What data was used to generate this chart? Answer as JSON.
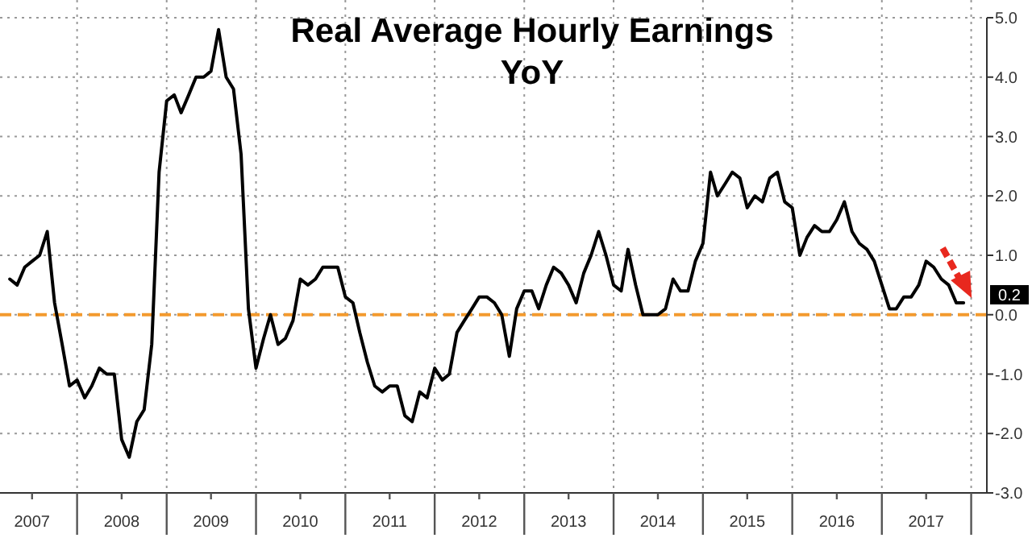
{
  "chart_data": {
    "type": "line",
    "title": "Real Average Hourly Earnings",
    "subtitle": "YoY",
    "x": [
      "2007-04",
      "2007-05",
      "2007-06",
      "2007-07",
      "2007-08",
      "2007-09",
      "2007-10",
      "2007-11",
      "2007-12",
      "2008-01",
      "2008-02",
      "2008-03",
      "2008-04",
      "2008-05",
      "2008-06",
      "2008-07",
      "2008-08",
      "2008-09",
      "2008-10",
      "2008-11",
      "2008-12",
      "2009-01",
      "2009-02",
      "2009-03",
      "2009-04",
      "2009-05",
      "2009-06",
      "2009-07",
      "2009-08",
      "2009-09",
      "2009-10",
      "2009-11",
      "2009-12",
      "2010-01",
      "2010-02",
      "2010-03",
      "2010-04",
      "2010-05",
      "2010-06",
      "2010-07",
      "2010-08",
      "2010-09",
      "2010-10",
      "2010-11",
      "2010-12",
      "2011-01",
      "2011-02",
      "2011-03",
      "2011-04",
      "2011-05",
      "2011-06",
      "2011-07",
      "2011-08",
      "2011-09",
      "2011-10",
      "2011-11",
      "2011-12",
      "2012-01",
      "2012-02",
      "2012-03",
      "2012-04",
      "2012-05",
      "2012-06",
      "2012-07",
      "2012-08",
      "2012-09",
      "2012-10",
      "2012-11",
      "2012-12",
      "2013-01",
      "2013-02",
      "2013-03",
      "2013-04",
      "2013-05",
      "2013-06",
      "2013-07",
      "2013-08",
      "2013-09",
      "2013-10",
      "2013-11",
      "2013-12",
      "2014-01",
      "2014-02",
      "2014-03",
      "2014-04",
      "2014-05",
      "2014-06",
      "2014-07",
      "2014-08",
      "2014-09",
      "2014-10",
      "2014-11",
      "2014-12",
      "2015-01",
      "2015-02",
      "2015-03",
      "2015-04",
      "2015-05",
      "2015-06",
      "2015-07",
      "2015-08",
      "2015-09",
      "2015-10",
      "2015-11",
      "2015-12",
      "2016-01",
      "2016-02",
      "2016-03",
      "2016-04",
      "2016-05",
      "2016-06",
      "2016-07",
      "2016-08",
      "2016-09",
      "2016-10",
      "2016-11",
      "2016-12",
      "2017-01",
      "2017-02",
      "2017-03",
      "2017-04",
      "2017-05",
      "2017-06",
      "2017-07",
      "2017-08",
      "2017-09",
      "2017-10",
      "2017-11",
      "2017-12"
    ],
    "series": [
      {
        "color": "#000000",
        "values": [
          0.6,
          0.5,
          0.8,
          0.9,
          1.0,
          1.4,
          0.2,
          -0.5,
          -1.2,
          -1.1,
          -1.4,
          -1.2,
          -0.9,
          -1.0,
          -1.0,
          -2.1,
          -2.4,
          -1.8,
          -1.6,
          -0.5,
          2.4,
          3.6,
          3.7,
          3.4,
          3.7,
          4.0,
          4.0,
          4.1,
          4.8,
          4.0,
          3.8,
          2.7,
          0.1,
          -0.9,
          -0.4,
          0.0,
          -0.5,
          -0.4,
          -0.1,
          0.6,
          0.5,
          0.6,
          0.8,
          0.8,
          0.8,
          0.3,
          0.2,
          -0.3,
          -0.8,
          -1.2,
          -1.3,
          -1.2,
          -1.2,
          -1.7,
          -1.8,
          -1.3,
          -1.4,
          -0.9,
          -1.1,
          -1.0,
          -0.3,
          -0.1,
          0.1,
          0.3,
          0.3,
          0.2,
          0.0,
          -0.7,
          0.1,
          0.4,
          0.4,
          0.1,
          0.5,
          0.8,
          0.7,
          0.5,
          0.2,
          0.7,
          1.0,
          1.4,
          1.0,
          0.5,
          0.4,
          1.1,
          0.5,
          0.0,
          0.0,
          0.0,
          0.1,
          0.6,
          0.4,
          0.4,
          0.9,
          1.2,
          2.4,
          2.0,
          2.2,
          2.4,
          2.3,
          1.8,
          2.0,
          1.9,
          2.3,
          2.4,
          1.9,
          1.8,
          1.0,
          1.3,
          1.5,
          1.4,
          1.4,
          1.6,
          1.9,
          1.4,
          1.2,
          1.1,
          0.9,
          0.5,
          0.1,
          0.1,
          0.3,
          0.3,
          0.5,
          0.9,
          0.8,
          0.6,
          0.5,
          0.2,
          0.2
        ]
      }
    ],
    "xlim": [
      "2007-02-20",
      "2018-03-06"
    ],
    "xticks": [
      {
        "value": "2007-07-01",
        "label": "2007"
      },
      {
        "value": "2008-01-01",
        "label": null
      },
      {
        "value": "2008-07-01",
        "label": "2008"
      },
      {
        "value": "2009-01-01",
        "label": null
      },
      {
        "value": "2009-07-01",
        "label": "2009"
      },
      {
        "value": "2010-01-01",
        "label": null
      },
      {
        "value": "2010-07-01",
        "label": "2010"
      },
      {
        "value": "2011-01-01",
        "label": null
      },
      {
        "value": "2011-07-01",
        "label": "2011"
      },
      {
        "value": "2012-01-01",
        "label": null
      },
      {
        "value": "2012-07-01",
        "label": "2012"
      },
      {
        "value": "2013-01-01",
        "label": null
      },
      {
        "value": "2013-07-01",
        "label": "2013"
      },
      {
        "value": "2014-01-01",
        "label": null
      },
      {
        "value": "2014-07-01",
        "label": "2014"
      },
      {
        "value": "2015-01-01",
        "label": null
      },
      {
        "value": "2015-07-01",
        "label": "2015"
      },
      {
        "value": "2016-01-01",
        "label": null
      },
      {
        "value": "2016-07-01",
        "label": "2016"
      },
      {
        "value": "2017-01-01",
        "label": null
      },
      {
        "value": "2017-07-01",
        "label": "2017"
      },
      {
        "value": "2018-01-01",
        "label": null
      }
    ],
    "ylim": [
      -3,
      5
    ],
    "yticks": [
      {
        "value": -3,
        "label": "-3.0"
      },
      {
        "value": -2,
        "label": "-2.0"
      },
      {
        "value": -1,
        "label": "-1.0"
      },
      {
        "value": 0,
        "label": "0.0"
      },
      {
        "value": 1,
        "label": "1.0"
      },
      {
        "value": 2,
        "label": "2.0"
      },
      {
        "value": 3,
        "label": "3.0"
      },
      {
        "value": 4,
        "label": "4.0"
      },
      {
        "value": 5,
        "label": "5.0"
      }
    ],
    "ref_lines": [
      {
        "axis": "y",
        "value": 0,
        "color": "#f39a2e",
        "line_style": "dashed"
      }
    ],
    "annotations": [
      {
        "text": "0.2",
        "x": "2017-12",
        "y": 0.2
      }
    ],
    "grid": true,
    "line_style": "solid",
    "marker": "none"
  }
}
